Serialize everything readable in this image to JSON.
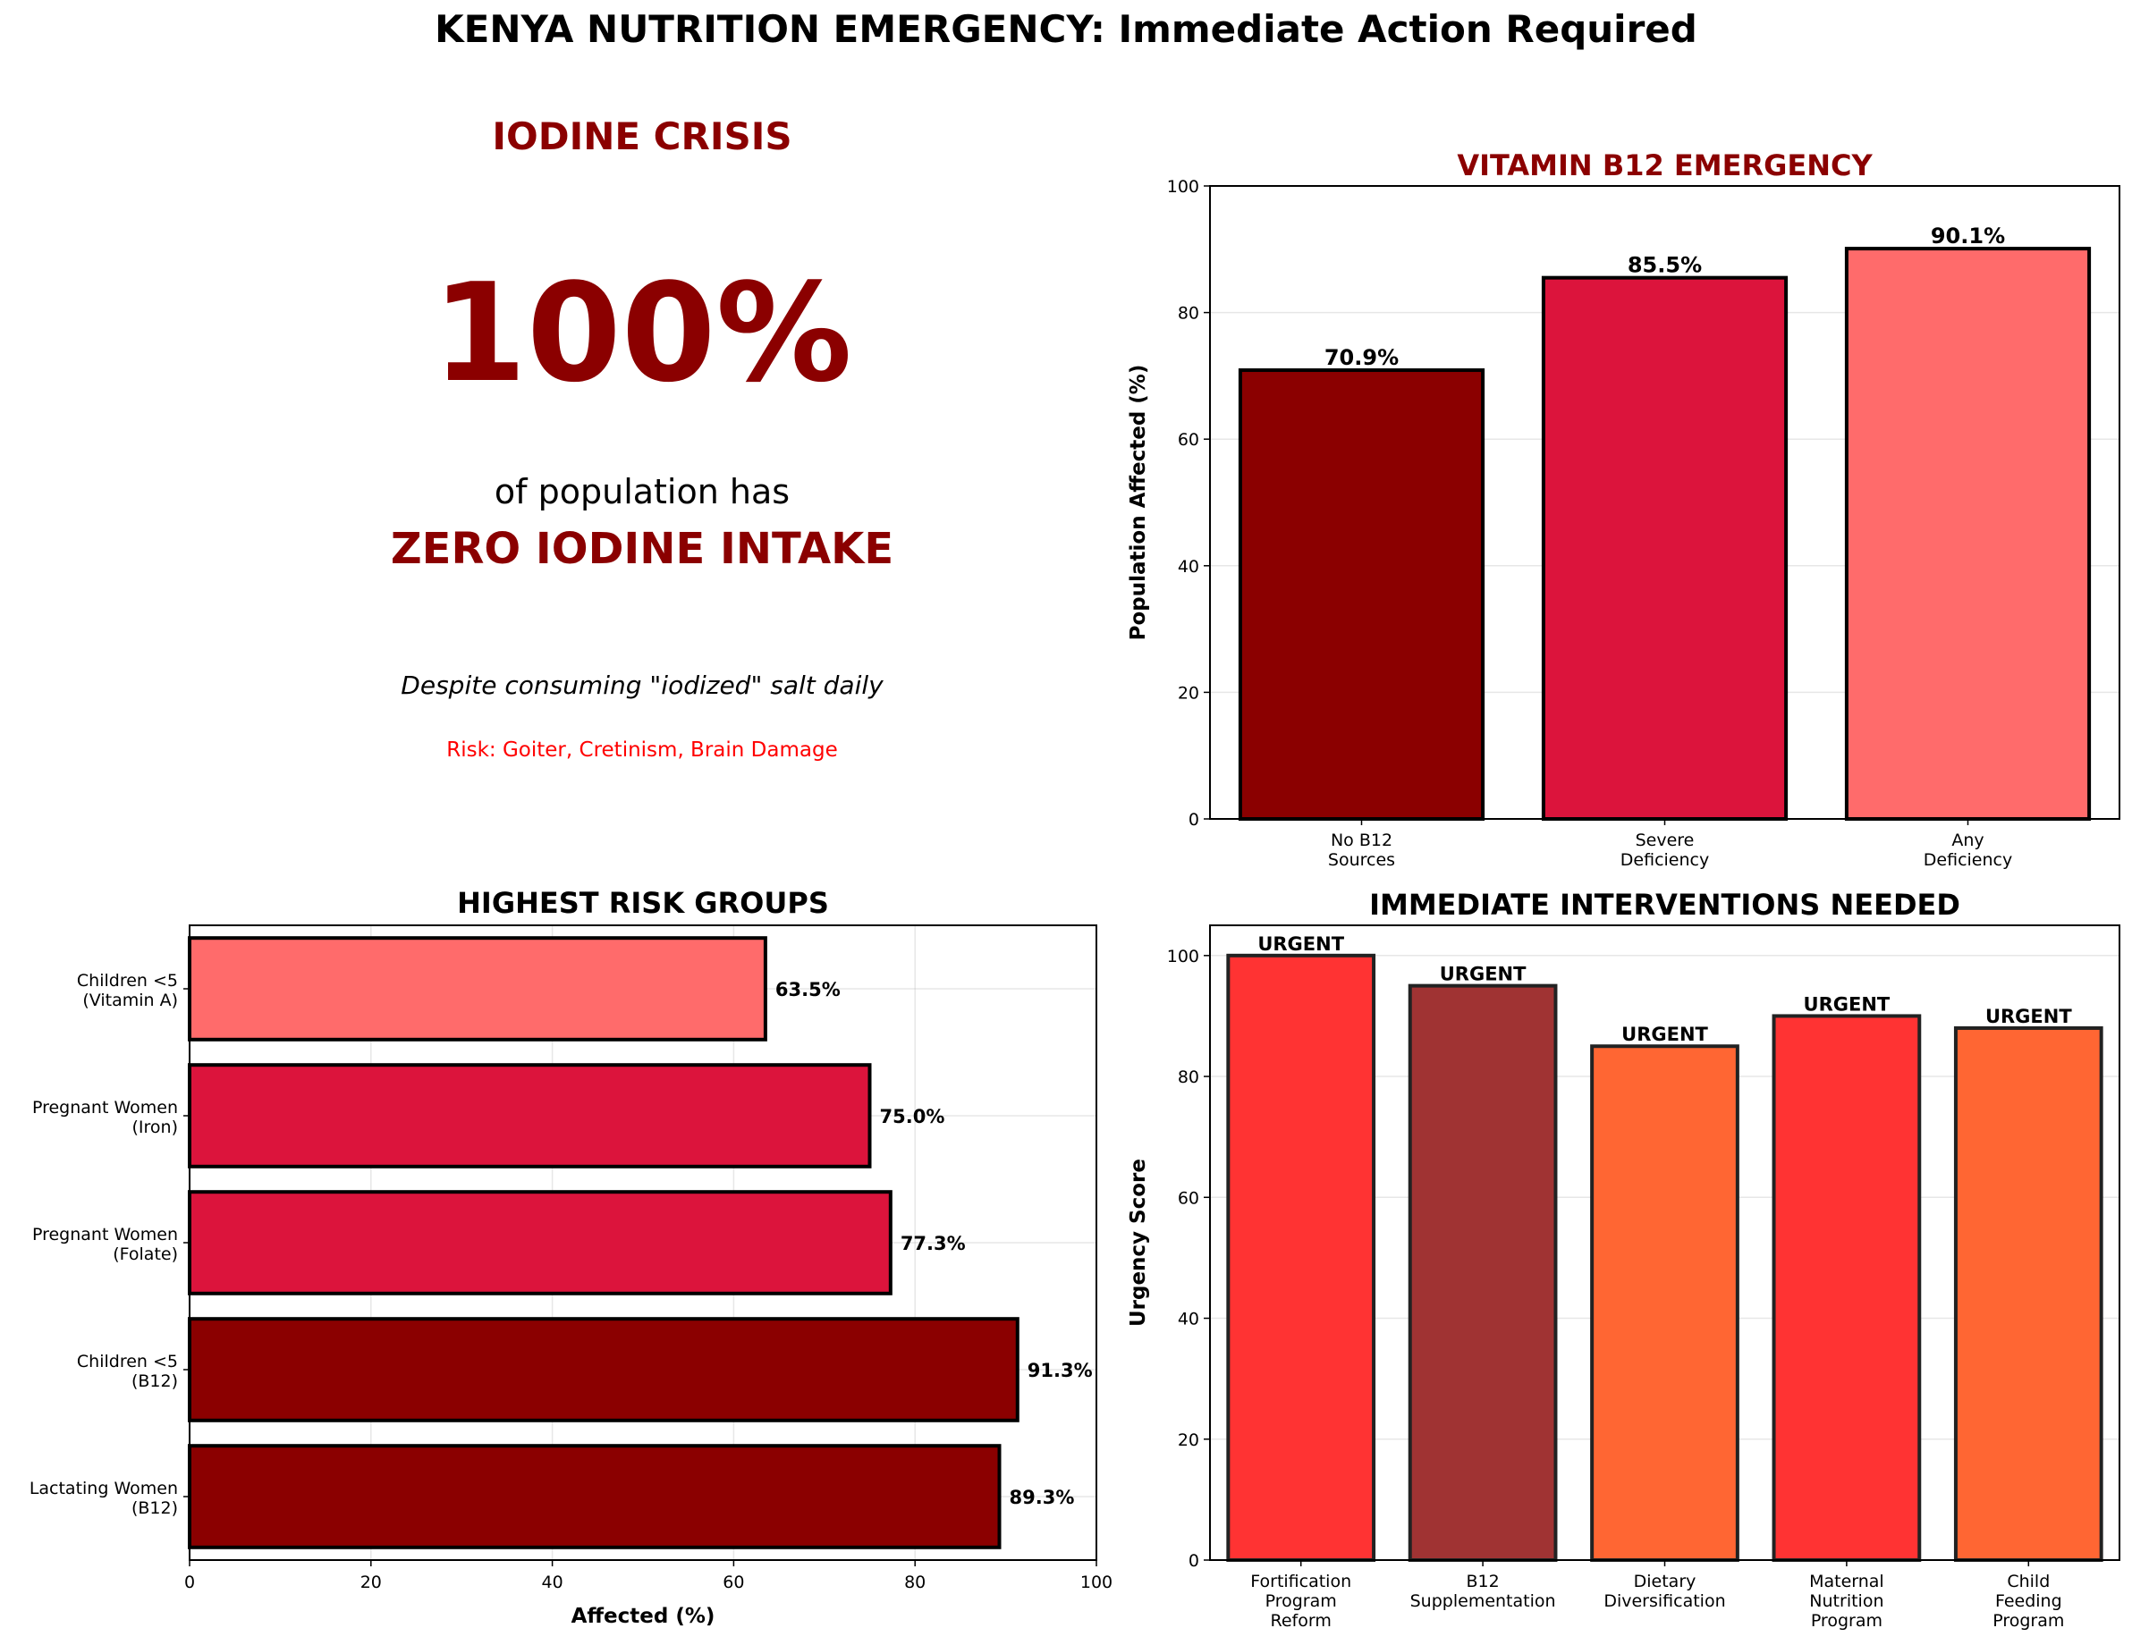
{
  "title": "KENYA NUTRITION EMERGENCY: Immediate Action Required",
  "iodine_panel": {
    "heading": "IODINE CRISIS",
    "big_stat": "100%",
    "line1": "of population has",
    "line2": "ZERO IODINE INTAKE",
    "note": "Despite consuming \"iodized\" salt daily",
    "risk": "Risk: Goiter, Cretinism, Brain Damage",
    "colors": {
      "dark": "#8b0000",
      "risk": "#ff0000"
    }
  },
  "chart_data": [
    {
      "id": "b12",
      "type": "bar",
      "title": "VITAMIN B12 EMERGENCY",
      "title_color": "#8b0000",
      "categories": [
        [
          "No B12",
          "Sources"
        ],
        [
          "Severe",
          "Deficiency"
        ],
        [
          "Any",
          "Deficiency"
        ]
      ],
      "values": [
        70.9,
        85.5,
        90.1
      ],
      "value_labels": [
        "70.9%",
        "85.5%",
        "90.1%"
      ],
      "colors": [
        "#8b0000",
        "#dc143c",
        "#ff6b6b"
      ],
      "xlabel": "",
      "ylabel": "Population Affected (%)",
      "ylim": [
        0,
        100
      ],
      "yticks": [
        0,
        20,
        40,
        60,
        80,
        100
      ],
      "grid": "y"
    },
    {
      "id": "risk",
      "type": "barh",
      "title": "HIGHEST RISK GROUPS",
      "title_color": "#000000",
      "categories": [
        [
          "Children <5",
          "(Vitamin A)"
        ],
        [
          "Pregnant Women",
          "(Iron)"
        ],
        [
          "Pregnant Women",
          "(Folate)"
        ],
        [
          "Children <5",
          "(B12)"
        ],
        [
          "Lactating Women",
          "(B12)"
        ]
      ],
      "values": [
        63.5,
        75.0,
        77.3,
        91.3,
        89.3
      ],
      "value_labels": [
        "63.5%",
        "75.0%",
        "77.3%",
        "91.3%",
        "89.3%"
      ],
      "colors": [
        "#ff6b6b",
        "#dc143c",
        "#dc143c",
        "#8b0000",
        "#8b0000"
      ],
      "xlabel": "Affected (%)",
      "ylabel": "",
      "xlim": [
        0,
        100
      ],
      "xticks": [
        0,
        20,
        40,
        60,
        80,
        100
      ],
      "grid": "both"
    },
    {
      "id": "interventions",
      "type": "bar",
      "title": "IMMEDIATE INTERVENTIONS NEEDED",
      "title_color": "#000000",
      "categories": [
        [
          "Fortification",
          "Program",
          "Reform"
        ],
        [
          "B12",
          "Supplementation"
        ],
        [
          "Dietary",
          "Diversification"
        ],
        [
          "Maternal",
          "Nutrition",
          "Program"
        ],
        [
          "Child",
          "Feeding",
          "Program"
        ]
      ],
      "values": [
        100,
        95,
        85,
        90,
        88
      ],
      "value_labels": [
        "URGENT",
        "URGENT",
        "URGENT",
        "URGENT",
        "URGENT"
      ],
      "colors": [
        "#ff3333",
        "#a03333",
        "#ff6633",
        "#ff3333",
        "#ff6633"
      ],
      "xlabel": "",
      "ylabel": "Urgency Score",
      "ylim": [
        0,
        105
      ],
      "yticks": [
        0,
        20,
        40,
        60,
        80,
        100
      ],
      "grid": "y"
    }
  ]
}
